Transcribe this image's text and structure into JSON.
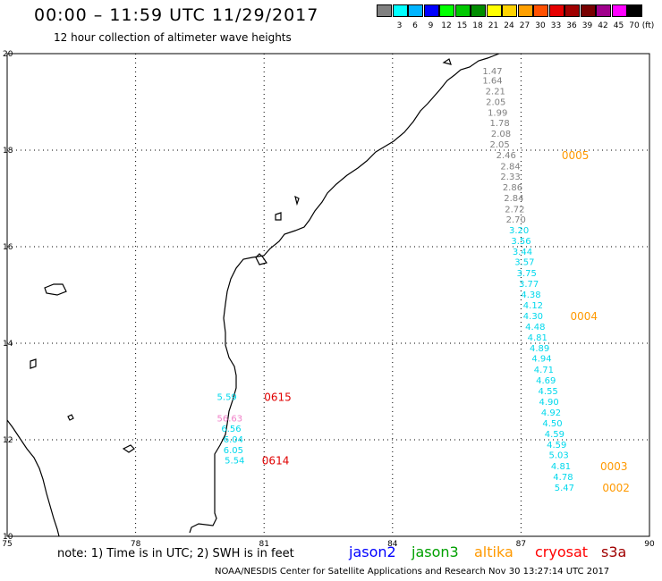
{
  "title": "00:00 – 11:59 UTC 11/29/2017",
  "subtitle": "12 hour collection of altimeter wave heights",
  "legend": {
    "unit_label": "(ft)",
    "bins": [
      {
        "label": "",
        "color": "#808080"
      },
      {
        "label": "3",
        "color": "#00ffff"
      },
      {
        "label": "6",
        "color": "#00b4ff"
      },
      {
        "label": "9",
        "color": "#0000ff"
      },
      {
        "label": "12",
        "color": "#00ff00"
      },
      {
        "label": "15",
        "color": "#00c800"
      },
      {
        "label": "18",
        "color": "#008c00"
      },
      {
        "label": "21",
        "color": "#ffff00"
      },
      {
        "label": "24",
        "color": "#ffd200"
      },
      {
        "label": "27",
        "color": "#ffa000"
      },
      {
        "label": "30",
        "color": "#ff5000"
      },
      {
        "label": "33",
        "color": "#e60000"
      },
      {
        "label": "36",
        "color": "#a00000"
      },
      {
        "label": "39",
        "color": "#780000"
      },
      {
        "label": "42",
        "color": "#a0008c"
      },
      {
        "label": "45",
        "color": "#ff00ff"
      },
      {
        "label": "70",
        "color": "#000000"
      }
    ]
  },
  "axes": {
    "lon_labels": [
      "75",
      "78",
      "81",
      "84",
      "87",
      "90"
    ],
    "lat_labels": [
      "20",
      "18",
      "16",
      "14",
      "12",
      "10"
    ],
    "lon_range": [
      75,
      90
    ],
    "lat_range": [
      10,
      20
    ]
  },
  "colors": {
    "gray": "#808080",
    "cyan": "#00d8ec",
    "pink": "#f080c8",
    "orange": "#ff9900",
    "red": "#e00000"
  },
  "tracks": [
    {
      "points": [
        {
          "lon": 86.1,
          "lat": 19.65,
          "value": "1.47",
          "color": "gray"
        },
        {
          "lon": 86.1,
          "lat": 19.45,
          "value": "1.64",
          "color": "gray"
        },
        {
          "lon": 86.17,
          "lat": 19.23,
          "value": "2.21",
          "color": "gray"
        },
        {
          "lon": 86.18,
          "lat": 19.01,
          "value": "2.05",
          "color": "gray"
        },
        {
          "lon": 86.22,
          "lat": 18.79,
          "value": "1.99",
          "color": "gray"
        },
        {
          "lon": 86.27,
          "lat": 18.57,
          "value": "1.78",
          "color": "gray"
        },
        {
          "lon": 86.3,
          "lat": 18.35,
          "value": "2.08",
          "color": "gray"
        },
        {
          "lon": 86.27,
          "lat": 18.13,
          "value": "2.05",
          "color": "gray"
        },
        {
          "lon": 86.42,
          "lat": 17.91,
          "value": "2.46",
          "color": "gray"
        },
        {
          "lon": 86.52,
          "lat": 17.68,
          "value": "2.84",
          "color": "gray"
        },
        {
          "lon": 86.52,
          "lat": 17.46,
          "value": "2.33",
          "color": "gray"
        },
        {
          "lon": 86.57,
          "lat": 17.24,
          "value": "2.86",
          "color": "gray"
        },
        {
          "lon": 86.6,
          "lat": 17.02,
          "value": "2.84",
          "color": "gray"
        },
        {
          "lon": 86.62,
          "lat": 16.79,
          "value": "2.72",
          "color": "gray"
        },
        {
          "lon": 86.65,
          "lat": 16.57,
          "value": "2.70",
          "color": "gray"
        },
        {
          "lon": 86.72,
          "lat": 16.35,
          "value": "3.20",
          "color": "cyan"
        },
        {
          "lon": 86.77,
          "lat": 16.13,
          "value": "3.56",
          "color": "cyan"
        },
        {
          "lon": 86.8,
          "lat": 15.91,
          "value": "3.44",
          "color": "cyan"
        },
        {
          "lon": 86.85,
          "lat": 15.69,
          "value": "3.57",
          "color": "cyan"
        },
        {
          "lon": 86.9,
          "lat": 15.46,
          "value": "3.75",
          "color": "cyan"
        },
        {
          "lon": 86.95,
          "lat": 15.24,
          "value": "3.77",
          "color": "cyan"
        },
        {
          "lon": 87.0,
          "lat": 15.02,
          "value": "4.38",
          "color": "cyan"
        },
        {
          "lon": 87.05,
          "lat": 14.8,
          "value": "4.12",
          "color": "cyan"
        },
        {
          "lon": 87.05,
          "lat": 14.57,
          "value": "4.30",
          "color": "cyan"
        },
        {
          "lon": 87.1,
          "lat": 14.35,
          "value": "4.48",
          "color": "cyan"
        },
        {
          "lon": 87.15,
          "lat": 14.13,
          "value": "4.81",
          "color": "cyan"
        },
        {
          "lon": 87.2,
          "lat": 13.91,
          "value": "4.89",
          "color": "cyan"
        },
        {
          "lon": 87.25,
          "lat": 13.69,
          "value": "4.94",
          "color": "cyan"
        },
        {
          "lon": 87.3,
          "lat": 13.46,
          "value": "4.71",
          "color": "cyan"
        },
        {
          "lon": 87.35,
          "lat": 13.24,
          "value": "4.69",
          "color": "cyan"
        },
        {
          "lon": 87.4,
          "lat": 13.02,
          "value": "4.55",
          "color": "cyan"
        },
        {
          "lon": 87.42,
          "lat": 12.8,
          "value": "4.90",
          "color": "cyan"
        },
        {
          "lon": 87.47,
          "lat": 12.57,
          "value": "4.92",
          "color": "cyan"
        },
        {
          "lon": 87.5,
          "lat": 12.35,
          "value": "4.50",
          "color": "cyan"
        },
        {
          "lon": 87.55,
          "lat": 12.13,
          "value": "4.59",
          "color": "cyan"
        },
        {
          "lon": 87.6,
          "lat": 11.91,
          "value": "4.59",
          "color": "cyan"
        },
        {
          "lon": 87.65,
          "lat": 11.69,
          "value": "5.03",
          "color": "cyan"
        },
        {
          "lon": 87.7,
          "lat": 11.46,
          "value": "4.81",
          "color": "cyan"
        },
        {
          "lon": 87.75,
          "lat": 11.24,
          "value": "4.78",
          "color": "cyan"
        },
        {
          "lon": 87.78,
          "lat": 11.02,
          "value": "5.47",
          "color": "cyan"
        }
      ],
      "time_labels": [
        {
          "lon": 87.95,
          "lat": 17.91,
          "text": "0005",
          "color": "orange"
        },
        {
          "lon": 88.15,
          "lat": 14.57,
          "text": "0004",
          "color": "orange"
        },
        {
          "lon": 88.85,
          "lat": 11.46,
          "text": "0003",
          "color": "orange"
        },
        {
          "lon": 88.9,
          "lat": 11.02,
          "text": "0002",
          "color": "orange"
        }
      ]
    },
    {
      "points": [
        {
          "lon": 79.9,
          "lat": 12.9,
          "value": "5.59",
          "color": "cyan"
        },
        {
          "lon": 79.9,
          "lat": 12.45,
          "value": "56.63",
          "color": "pink"
        },
        {
          "lon": 80.0,
          "lat": 12.24,
          "value": "6.56",
          "color": "cyan"
        },
        {
          "lon": 80.05,
          "lat": 12.02,
          "value": "6.04",
          "color": "cyan"
        },
        {
          "lon": 80.05,
          "lat": 11.8,
          "value": "6.05",
          "color": "cyan"
        },
        {
          "lon": 80.08,
          "lat": 11.58,
          "value": "5.54",
          "color": "cyan"
        }
      ],
      "time_labels": [
        {
          "lon": 81.0,
          "lat": 12.9,
          "text": "0615",
          "color": "red"
        },
        {
          "lon": 80.95,
          "lat": 11.58,
          "text": "0614",
          "color": "red"
        }
      ]
    }
  ],
  "note": "note: 1) Time is in UTC; 2) SWH is in feet",
  "satellites": [
    {
      "name": "jason2",
      "color": "#0000ff"
    },
    {
      "name": "jason3",
      "color": "#00a000"
    },
    {
      "name": "altika",
      "color": "#ff9900"
    },
    {
      "name": "cryosat",
      "color": "#ff0000"
    },
    {
      "name": "s3a",
      "color": "#a00000"
    }
  ],
  "credit": "NOAA/NESDIS Center for Satellite Applications and Research   Nov 30 13:27:14 UTC 2017"
}
